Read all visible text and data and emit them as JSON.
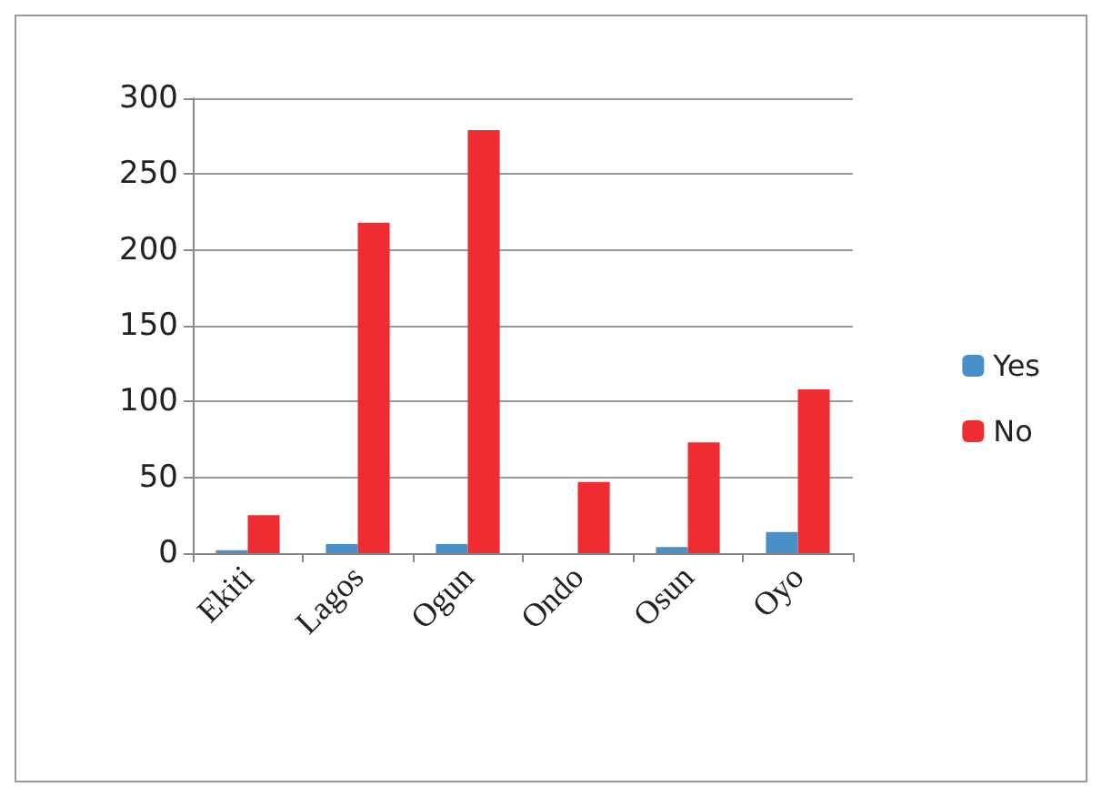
{
  "chart_data": {
    "type": "bar",
    "categories": [
      "Ekiti",
      "Lagos",
      "Ogun",
      "Ondo",
      "Osun",
      "Oyo"
    ],
    "series": [
      {
        "name": "Yes",
        "color": "#4a90c8",
        "values": [
          2,
          6,
          6,
          0,
          4,
          14
        ]
      },
      {
        "name": "No",
        "color": "#ee2c31",
        "values": [
          25,
          218,
          279,
          47,
          73,
          108
        ]
      }
    ],
    "ylim": [
      0,
      300
    ],
    "yticks": [
      0,
      50,
      100,
      150,
      200,
      250,
      300
    ],
    "grid": "y",
    "legend": "right"
  }
}
